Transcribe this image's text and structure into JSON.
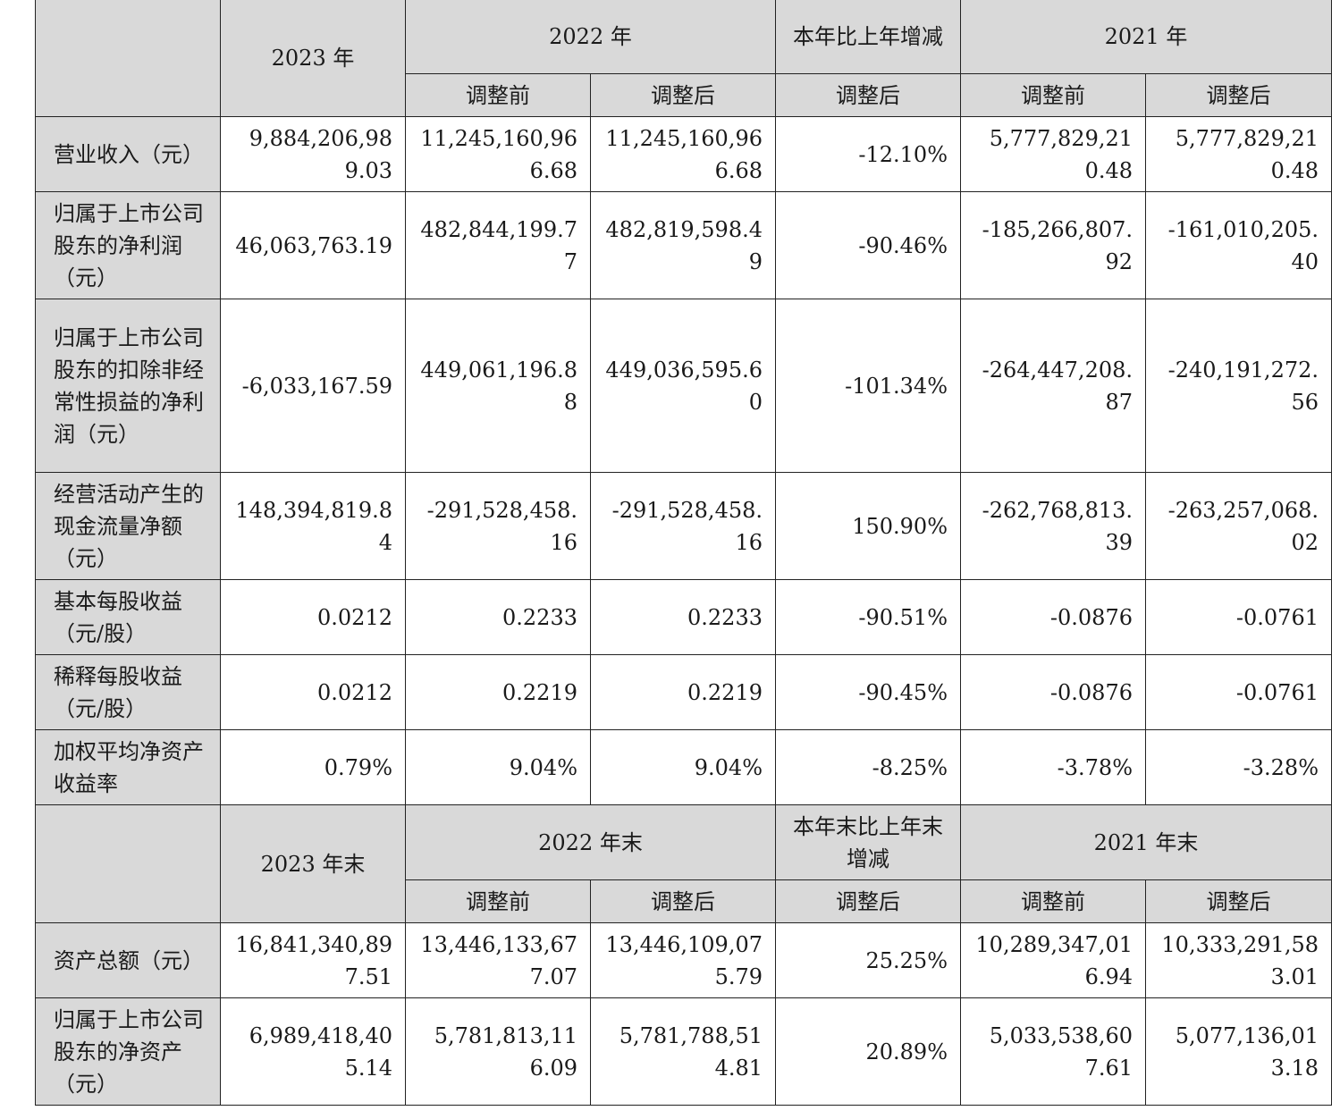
{
  "header1": {
    "col_2023": "2023 年",
    "col_2022": "2022 年",
    "col_change": "本年比上年增减",
    "col_2021": "2021 年",
    "before": "调整前",
    "after": "调整后"
  },
  "rows1": [
    {
      "label": "营业收入（元）",
      "v2023": "9,884,206,989.03",
      "v2022_before": "11,245,160,966.68",
      "v2022_after": "11,245,160,966.68",
      "change": "-12.10%",
      "v2021_before": "5,777,829,210.48",
      "v2021_after": "5,777,829,210.48"
    },
    {
      "label": "归属于上市公司股东的净利润（元）",
      "v2023": "46,063,763.19",
      "v2022_before": "482,844,199.77",
      "v2022_after": "482,819,598.49",
      "change": "-90.46%",
      "v2021_before": "-185,266,807.92",
      "v2021_after": "-161,010,205.40"
    },
    {
      "label": "归属于上市公司股东的扣除非经常性损益的净利润（元）",
      "v2023": "-6,033,167.59",
      "v2022_before": "449,061,196.88",
      "v2022_after": "449,036,595.60",
      "change": "-101.34%",
      "v2021_before": "-264,447,208.87",
      "v2021_after": "-240,191,272.56"
    },
    {
      "label": "经营活动产生的现金流量净额（元）",
      "v2023": "148,394,819.84",
      "v2022_before": "-291,528,458.16",
      "v2022_after": "-291,528,458.16",
      "change": "150.90%",
      "v2021_before": "-262,768,813.39",
      "v2021_after": "-263,257,068.02"
    },
    {
      "label": "基本每股收益（元/股）",
      "v2023": "0.0212",
      "v2022_before": "0.2233",
      "v2022_after": "0.2233",
      "change": "-90.51%",
      "v2021_before": "-0.0876",
      "v2021_after": "-0.0761"
    },
    {
      "label": "稀释每股收益（元/股）",
      "v2023": "0.0212",
      "v2022_before": "0.2219",
      "v2022_after": "0.2219",
      "change": "-90.45%",
      "v2021_before": "-0.0876",
      "v2021_after": "-0.0761"
    },
    {
      "label": "加权平均净资产收益率",
      "v2023": "0.79%",
      "v2022_before": "9.04%",
      "v2022_after": "9.04%",
      "change": "-8.25%",
      "v2021_before": "-3.78%",
      "v2021_after": "-3.28%"
    }
  ],
  "header2": {
    "col_2023": "2023 年末",
    "col_2022": "2022 年末",
    "col_change": "本年末比上年末增减",
    "col_2021": "2021 年末",
    "before": "调整前",
    "after": "调整后"
  },
  "rows2": [
    {
      "label": "资产总额（元）",
      "v2023": "16,841,340,897.51",
      "v2022_before": "13,446,133,677.07",
      "v2022_after": "13,446,109,075.79",
      "change": "25.25%",
      "v2021_before": "10,289,347,016.94",
      "v2021_after": "10,333,291,583.01"
    },
    {
      "label": "归属于上市公司股东的净资产（元）",
      "v2023": "6,989,418,405.14",
      "v2022_before": "5,781,813,116.09",
      "v2022_after": "5,781,788,514.81",
      "change": "20.89%",
      "v2021_before": "5,033,538,607.61",
      "v2021_after": "5,077,136,013.18"
    }
  ]
}
